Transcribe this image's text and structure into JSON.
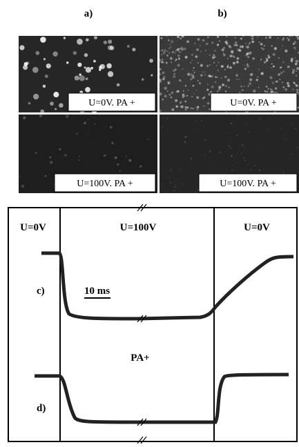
{
  "panel_labels": [
    "a)",
    "b)"
  ],
  "images": [
    {
      "label": "U=0V. PA +"
    },
    {
      "label": "U=0V. PA +"
    },
    {
      "label": "U=100V. PA +"
    },
    {
      "label": "U=100V. PA +"
    }
  ],
  "traces": {
    "phases": [
      "U=0V",
      "U=100V",
      "U=0V"
    ],
    "trace_labels": [
      "c)",
      "d)"
    ],
    "scale_bar": "10 ms",
    "middle_label": "PA+"
  }
}
